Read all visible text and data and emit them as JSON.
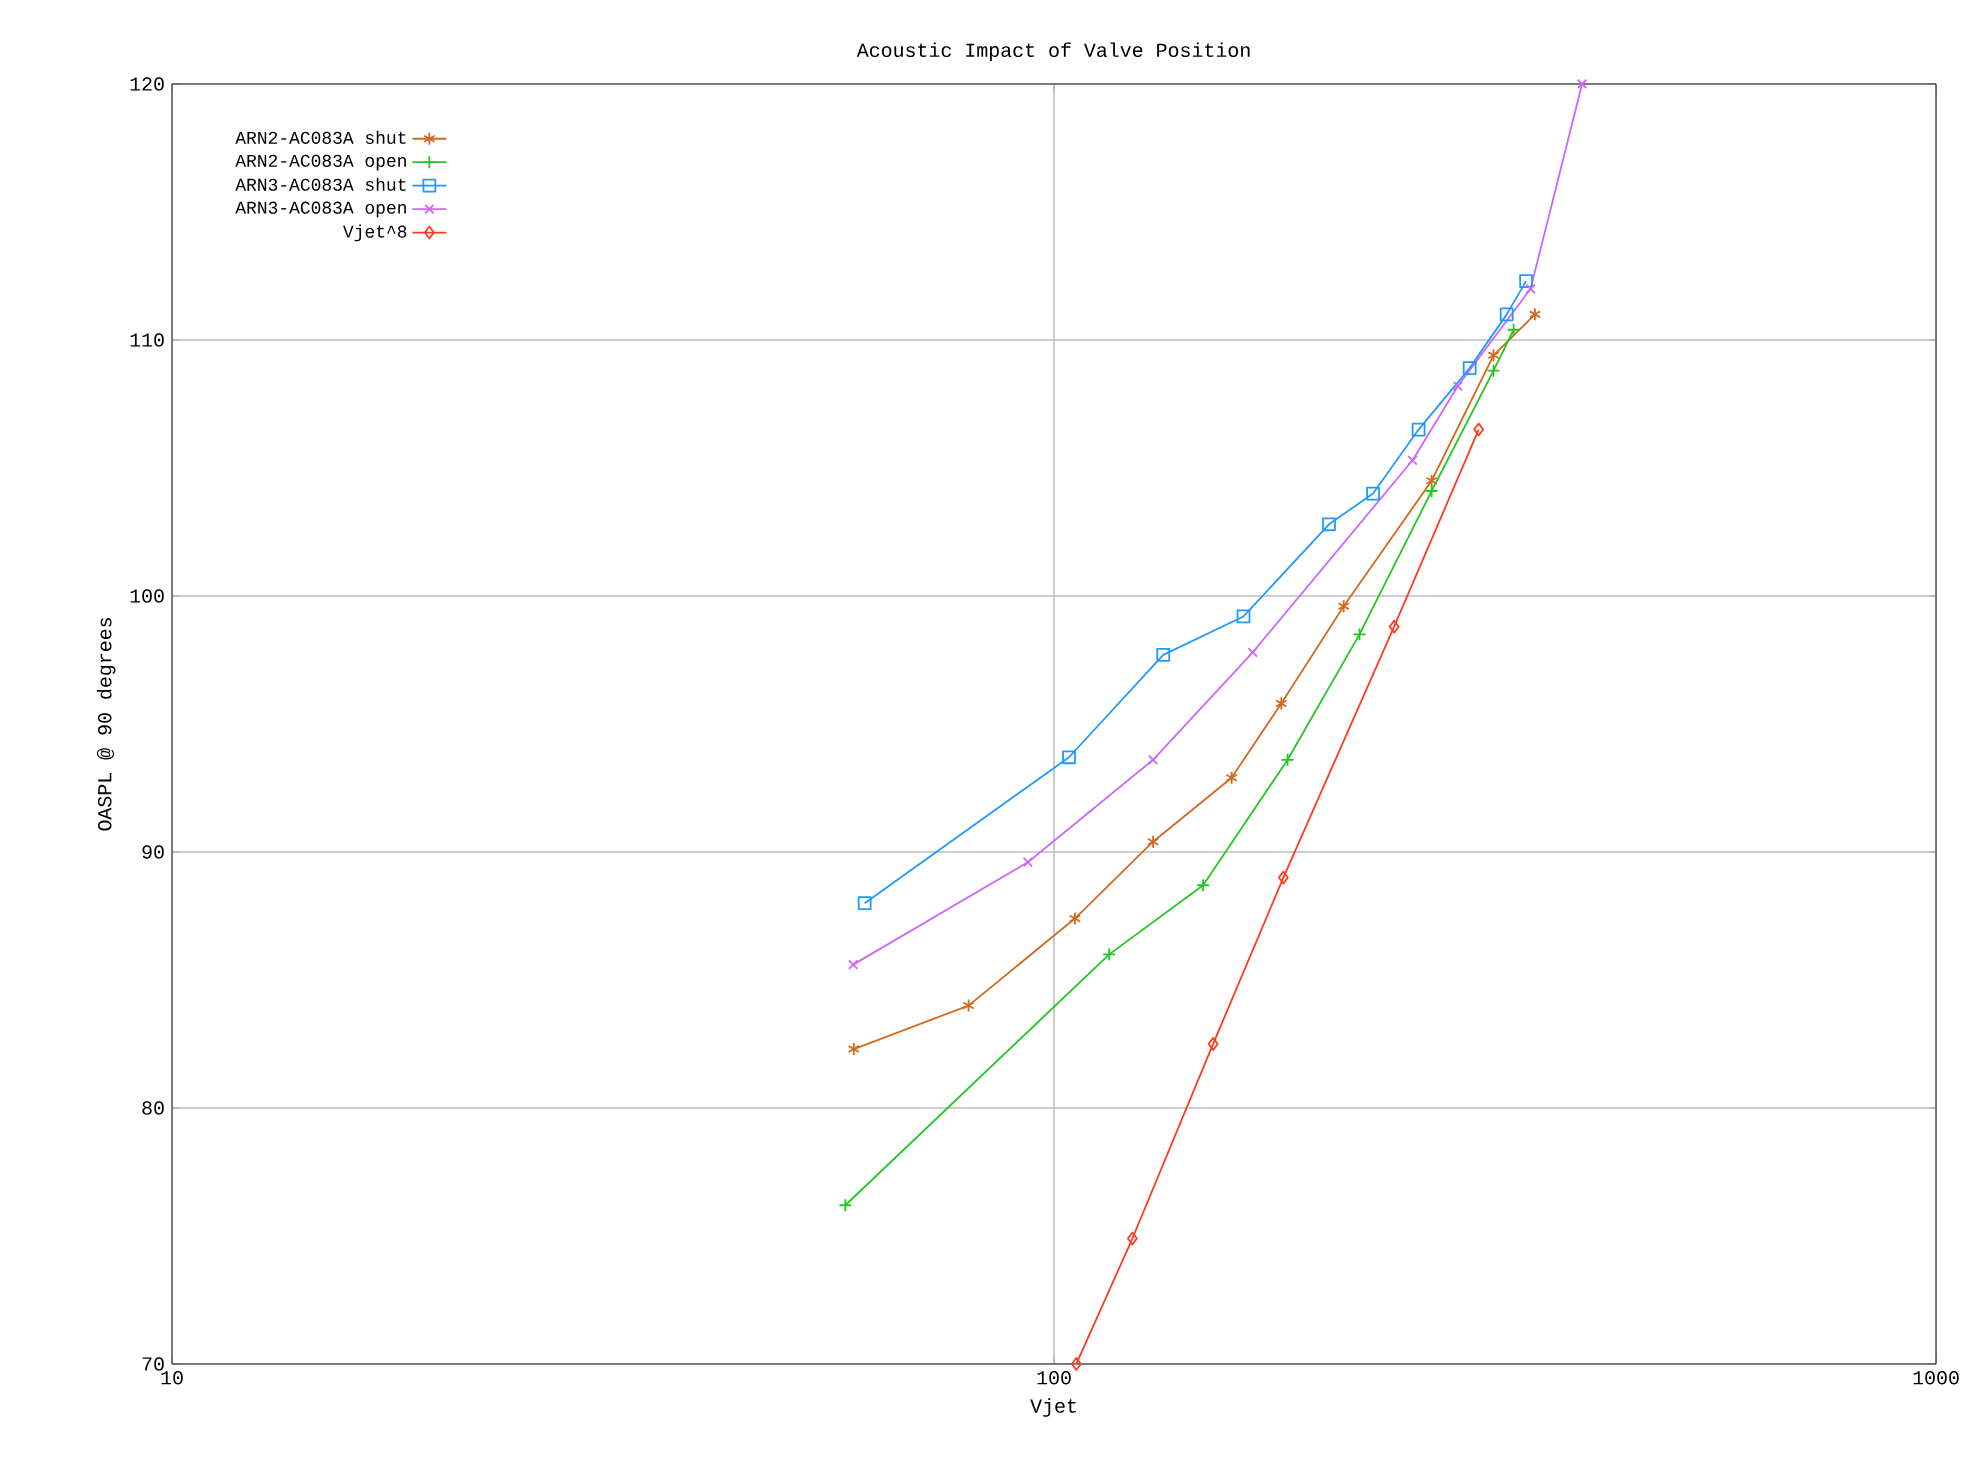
{
  "chart_data": {
    "type": "line",
    "title": "Acoustic Impact of Valve Position",
    "xlabel": "Vjet",
    "ylabel": "OASPL @ 90 degrees",
    "log": "x",
    "xlim": [
      10,
      1000
    ],
    "xticks": [
      10,
      100,
      1000
    ],
    "ylim": [
      70,
      120
    ],
    "yticks": [
      70,
      80,
      90,
      100,
      110,
      120
    ],
    "grid": true,
    "legend": "top left",
    "line_style": "solid",
    "series": [
      {
        "name": "ARN2-AC083A shut",
        "color": "#d2691e",
        "marker": "cross",
        "x": [
          59.3,
          80,
          105.6,
          129.5,
          159,
          181,
          213,
          268,
          315,
          351
        ],
        "values": [
          82.3,
          84.0,
          87.4,
          90.4,
          92.9,
          95.8,
          99.6,
          104.5,
          109.4,
          111.0
        ]
      },
      {
        "name": "ARN2-AC083A open",
        "color": "#22c822",
        "marker": "cross",
        "x": [
          58,
          115.5,
          147.6,
          184,
          222,
          268,
          315,
          332
        ],
        "values": [
          76.2,
          86.0,
          88.7,
          93.6,
          98.5,
          104.1,
          108.8,
          110.4
        ]
      },
      {
        "name": "ARN3-AC083A shut",
        "color": "#2299ff",
        "marker": "square",
        "x": [
          61,
          104,
          133,
          164,
          205,
          230,
          259,
          296,
          326,
          343
        ],
        "values": [
          88.0,
          93.7,
          97.7,
          99.2,
          102.8,
          104.0,
          106.5,
          108.9,
          111.0,
          112.3
        ]
      },
      {
        "name": "ARN3-AC083A open",
        "color": "#cc66ff",
        "marker": "cross",
        "x": [
          59.2,
          93.4,
          129.5,
          168,
          255,
          287,
          347,
          397
        ],
        "values": [
          85.6,
          89.6,
          93.6,
          97.8,
          105.3,
          108.2,
          112.0,
          120
        ]
      },
      {
        "name": "Vjet^8",
        "color": "#ff3a1e",
        "marker": "diamond",
        "x": [
          106,
          122.7,
          151.5,
          182,
          243,
          303
        ],
        "values": [
          70,
          74.9,
          82.5,
          89.0,
          98.8,
          106.5
        ]
      }
    ]
  }
}
